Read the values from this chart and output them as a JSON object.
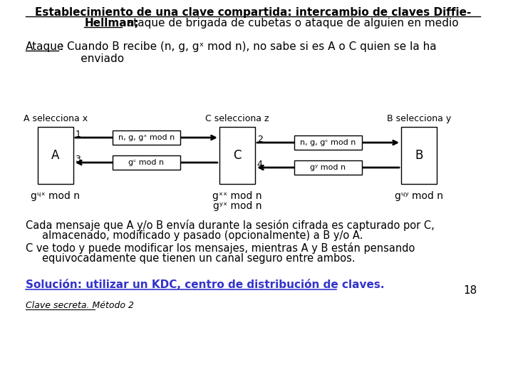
{
  "bg_color": "#ffffff",
  "title_line1": "Establecimiento de una clave compartida: intercambio de claves Diffie-",
  "title_line2_bold": "Hellman;",
  "title_line2_rest": " ataque de brigada de cubetas o ataque de alguien en medio",
  "ataque_label": "Ataque",
  "ataque_text": ": Cuando B recibe (n, g, gˣ mod n), no sabe si es A o C quien se la ha\n      enviado",
  "body_text1_line1": "Cada mensaje que A y/o B envía durante la sesión cifrada es capturado por C,",
  "body_text1_line2": "     almacenado, modificado y pasado (opcionalmente) a B y/o A.",
  "body_text2_line1": "C ve todo y puede modificar los mensajes, mientras A y B están pensando",
  "body_text2_line2": "     equivocadamente que tienen un canal seguro entre ambos.",
  "solution_text": "Solución: utilizar un KDC, centro de distribución de claves.",
  "footer_text": "Clave secreta. Método 2",
  "page_number": "18",
  "box_A_label": "A",
  "box_C_label": "C",
  "box_B_label": "B",
  "label_A": "A selecciona x",
  "label_C": "C selecciona z",
  "label_B": "B selecciona y",
  "msg1": "n, g, gˣ mod n",
  "msg2": "n, g, gᶜ mod n",
  "msg3": "gᶜ mod n",
  "msg4": "gʸ mod n",
  "bottom_A": "gᶣˣ mod n",
  "bottom_C1": "gˣˣ mod n",
  "bottom_C2": "gʸˣ mod n",
  "bottom_B": "gᶣʸ mod n",
  "solution_color": "#3333cc",
  "num1": "1",
  "num2": "2",
  "num3": "3",
  "num4": "4"
}
